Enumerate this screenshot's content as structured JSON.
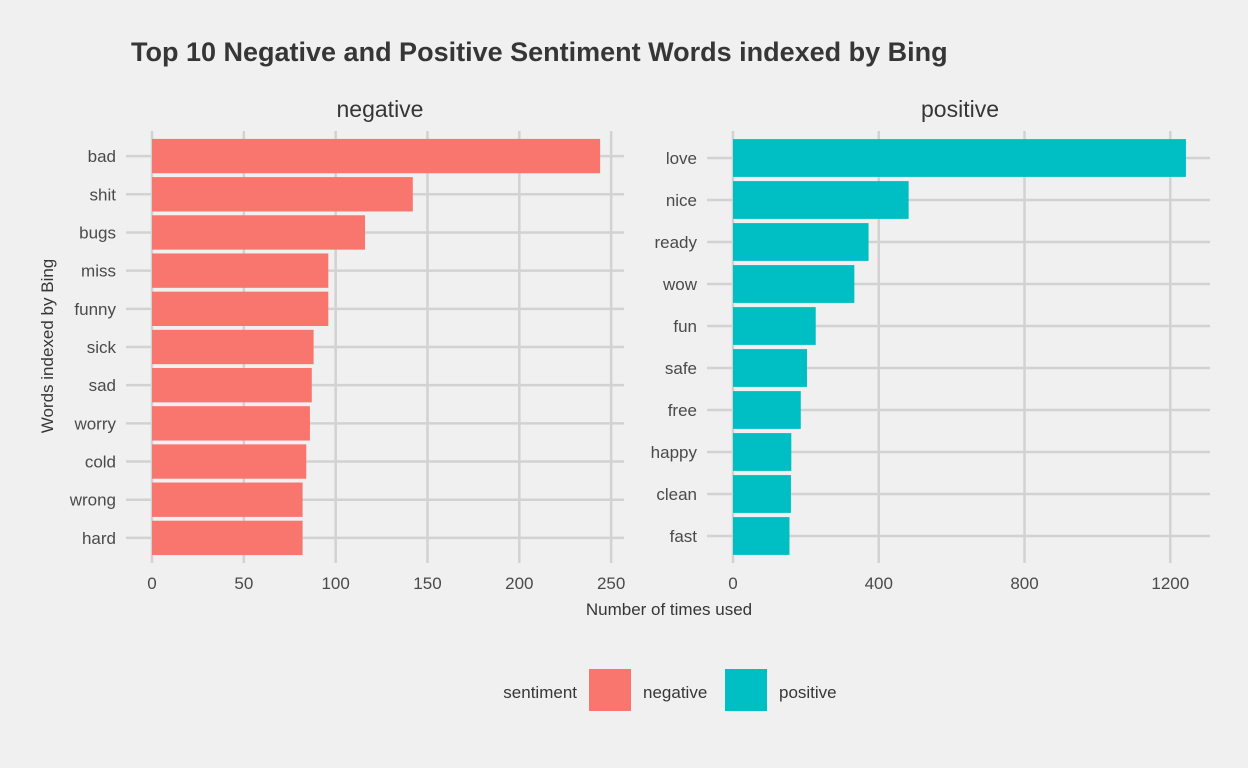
{
  "chart_data": {
    "type": "bar",
    "orientation": "horizontal",
    "title": "Top 10 Negative and Positive Sentiment Words indexed by Bing",
    "xlabel": "Number of times used",
    "ylabel": "Words indexed by Bing",
    "grid": true,
    "legend": {
      "title": "sentiment",
      "position": "bottom",
      "entries": [
        {
          "label": "negative",
          "color": "#F8766D"
        },
        {
          "label": "positive",
          "color": "#00BFC4"
        }
      ]
    },
    "panels": [
      {
        "facet": "negative",
        "color": "#F8766D",
        "categories": [
          "bad",
          "shit",
          "bugs",
          "miss",
          "funny",
          "sick",
          "sad",
          "worry",
          "cold",
          "wrong",
          "hard"
        ],
        "values": [
          244,
          142,
          116,
          96,
          96,
          88,
          87,
          86,
          84,
          82,
          82
        ],
        "xlim": [
          0,
          257
        ],
        "xticks": [
          0,
          50,
          100,
          150,
          200,
          250
        ]
      },
      {
        "facet": "positive",
        "color": "#00BFC4",
        "categories": [
          "love",
          "nice",
          "ready",
          "wow",
          "fun",
          "safe",
          "free",
          "happy",
          "clean",
          "fast"
        ],
        "values": [
          1243,
          482,
          372,
          333,
          227,
          203,
          186,
          160,
          159,
          155
        ],
        "xlim": [
          0,
          1309
        ],
        "xticks": [
          0,
          400,
          800,
          1200
        ]
      }
    ]
  }
}
